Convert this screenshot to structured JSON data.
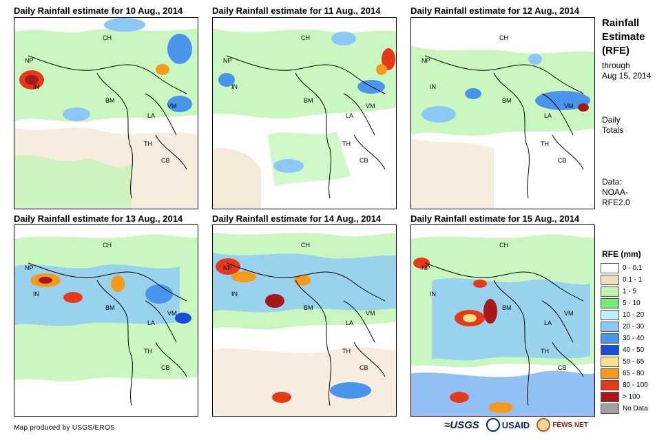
{
  "panels": [
    {
      "title": "Daily Rainfall estimate for 10 Aug., 2014"
    },
    {
      "title": "Daily Rainfall estimate for 11 Aug., 2014"
    },
    {
      "title": "Daily Rainfall estimate for 12 Aug., 2014"
    },
    {
      "title": "Daily Rainfall estimate for 13 Aug., 2014"
    },
    {
      "title": "Daily Rainfall estimate for 14 Aug., 2014"
    },
    {
      "title": "Daily Rainfall estimate for 15 Aug., 2014"
    }
  ],
  "country_labels": {
    "ch": "CH",
    "np": "NP",
    "in": "IN",
    "bm": "BM",
    "la": "LA",
    "vm": "VM",
    "th": "TH",
    "cb": "CB"
  },
  "sidebar": {
    "title_line1": "Rainfall",
    "title_line2": "Estimate",
    "title_line3": "(RFE)",
    "through": "through",
    "date": "Aug 15, 2014",
    "daily": "Daily",
    "totals": "Totals",
    "data_label": "Data:",
    "source_line1": "NOAA-",
    "source_line2": "RFE2.0"
  },
  "legend": {
    "title": "RFE (mm)",
    "items": [
      {
        "label": "0 - 0.1",
        "color": "#ffffff"
      },
      {
        "label": "0.1 - 1",
        "color": "#eedcbe"
      },
      {
        "label": "1 - 5",
        "color": "#bdf5b0"
      },
      {
        "label": "5 - 10",
        "color": "#78e878"
      },
      {
        "label": "10 - 20",
        "color": "#bfeefc"
      },
      {
        "label": "20 - 30",
        "color": "#8cc8f6"
      },
      {
        "label": "30 - 40",
        "color": "#4a94ec"
      },
      {
        "label": "40 - 50",
        "color": "#1650d8"
      },
      {
        "label": "50 - 65",
        "color": "#fde28a"
      },
      {
        "label": "65 - 80",
        "color": "#f59a1c"
      },
      {
        "label": "80 - 100",
        "color": "#e43a1a"
      },
      {
        "label": "> 100",
        "color": "#a81818"
      },
      {
        "label": "No Data",
        "color": "#a0a0a0"
      }
    ]
  },
  "footer": {
    "credit": "Map produced by USGS/EROS"
  },
  "logos": {
    "usgs": "≈USGS",
    "usaid": "USAID",
    "fews": "FEWS NET"
  }
}
